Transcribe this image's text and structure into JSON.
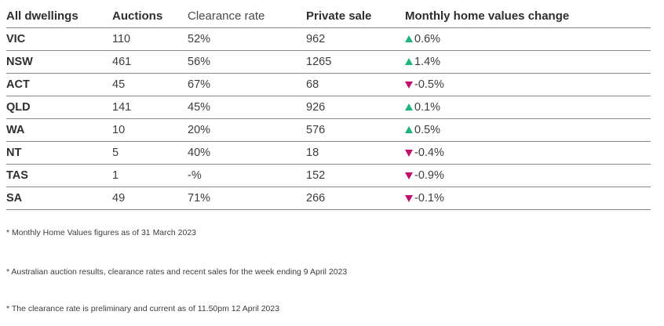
{
  "table": {
    "headers": [
      "All dwellings",
      "Auctions",
      "Clearance rate",
      "Private sale",
      "Monthly home values change"
    ],
    "rows": [
      {
        "state": "VIC",
        "auctions": "110",
        "clearance": "52%",
        "private": "962",
        "direction": "up",
        "change": "0.6%"
      },
      {
        "state": "NSW",
        "auctions": "461",
        "clearance": "56%",
        "private": "1265",
        "direction": "up",
        "change": "1.4%"
      },
      {
        "state": "ACT",
        "auctions": "45",
        "clearance": "67%",
        "private": "68",
        "direction": "down",
        "change": "-0.5%"
      },
      {
        "state": "QLD",
        "auctions": "141",
        "clearance": "45%",
        "private": "926",
        "direction": "up",
        "change": "0.1%"
      },
      {
        "state": "WA",
        "auctions": "10",
        "clearance": "20%",
        "private": "576",
        "direction": "up",
        "change": "0.5%"
      },
      {
        "state": "NT",
        "auctions": "5",
        "clearance": "40%",
        "private": "18",
        "direction": "down",
        "change": "-0.4%"
      },
      {
        "state": "TAS",
        "auctions": "1",
        "clearance": "-%",
        "private": "152",
        "direction": "down",
        "change": "-0.9%"
      },
      {
        "state": "SA",
        "auctions": "49",
        "clearance": "71%",
        "private": "266",
        "direction": "down",
        "change": "-0.1%"
      }
    ]
  },
  "notes": [
    "* Monthly Home Values figures as of 31 March 2023",
    "* Australian auction results, clearance rates and recent sales for the week ending 9 April 2023",
    "* The clearance rate is preliminary and current as of 11.50pm 12 April 2023"
  ],
  "colors": {
    "up": "#1db57a",
    "down": "#c0116d"
  }
}
